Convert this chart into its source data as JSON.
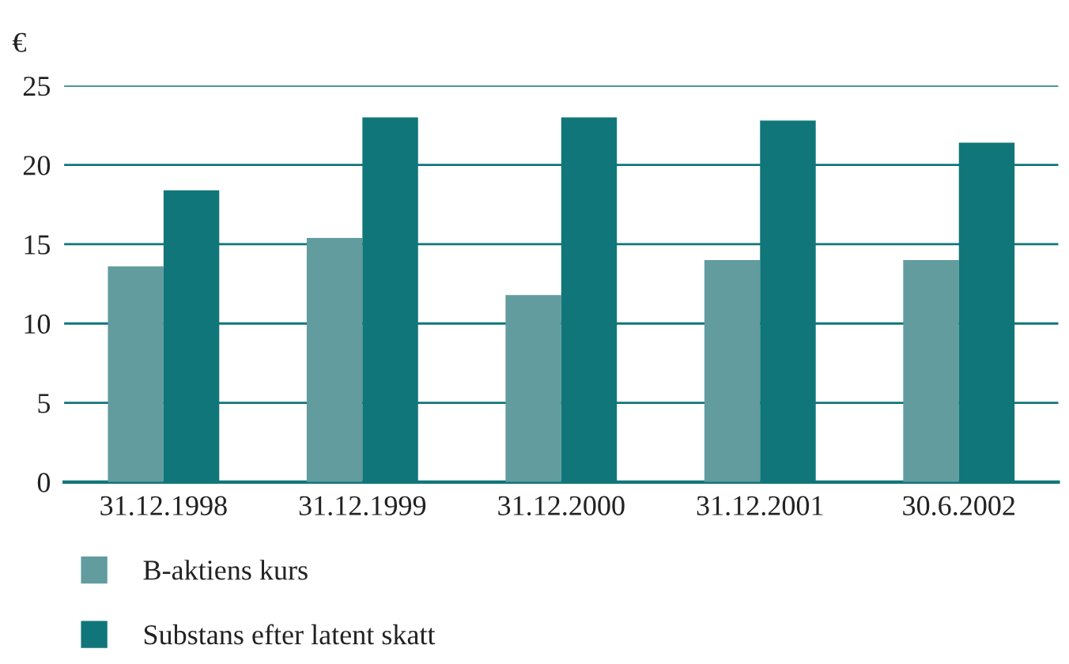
{
  "chart_data": {
    "type": "bar",
    "ylabel": "€",
    "categories": [
      "31.12.1998",
      "31.12.1999",
      "31.12.2000",
      "31.12.2001",
      "30.6.2002"
    ],
    "series": [
      {
        "name": "B-aktiens kurs",
        "color": "#629c9f",
        "values": [
          13.6,
          15.4,
          11.8,
          14.0,
          14.0
        ]
      },
      {
        "name": "Substans efter latent skatt",
        "color": "#10767a",
        "values": [
          18.4,
          23.0,
          23.0,
          22.8,
          21.4
        ]
      }
    ],
    "ylim": [
      0,
      25
    ],
    "yticks": [
      0,
      5,
      10,
      15,
      20,
      25
    ],
    "grid": "y",
    "legend": "bottom left"
  }
}
